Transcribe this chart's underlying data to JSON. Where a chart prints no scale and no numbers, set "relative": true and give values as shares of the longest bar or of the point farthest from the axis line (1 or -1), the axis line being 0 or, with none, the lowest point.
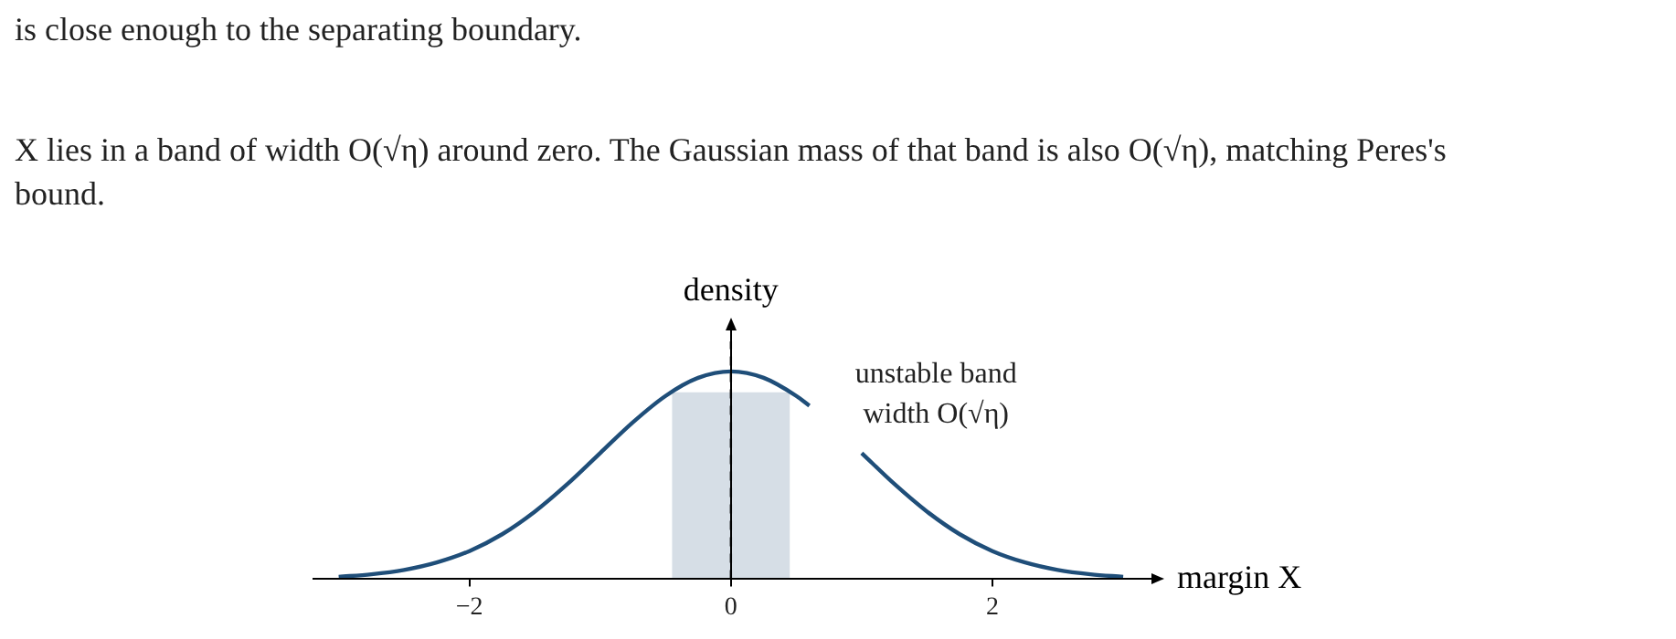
{
  "chart_data": {
    "type": "line",
    "relative": true,
    "annotations": [
      "is close enough to the separating boundary.",
      "X lies in a band of width O(√η) around zero. The Gaussian mass of that band is also O(√η), matching Peres's bound."
    ],
    "xlabel": "margin X",
    "ylabel": "density",
    "xlim": [
      -3.2,
      3.3
    ],
    "xticks": [
      {
        "value": -2,
        "label": "−2"
      },
      0,
      2
    ],
    "series": [
      {
        "color": "#1f4e79",
        "x": [
          -3,
          -2.75,
          -2.5,
          -2.25,
          -2,
          -1.75,
          -1.5,
          -1.25,
          -1,
          -0.75,
          -0.5,
          -0.25,
          0,
          0.25,
          0.5,
          0.6,
          0.75,
          1,
          1.25,
          1.5,
          1.75,
          2,
          2.25,
          2.5,
          2.75,
          3
        ],
        "values": [
          0.011,
          0.023,
          0.044,
          0.08,
          0.135,
          0.216,
          0.325,
          0.458,
          0.607,
          0.755,
          0.882,
          0.969,
          1,
          0.969,
          0.882,
          0.835,
          null,
          0.607,
          0.458,
          0.325,
          0.216,
          0.135,
          0.08,
          0.044,
          0.023,
          0.011
        ]
      }
    ],
    "bands": [
      {
        "axis": "x",
        "from": -0.45,
        "to": 0.45,
        "label": "unstable band\nwidth O(√η)",
        "color": "#d6dee6"
      }
    ],
    "ref_lines": [
      {
        "axis": "x",
        "value": 0,
        "line_style": "dashed",
        "color": "#000000"
      }
    ],
    "marker": "none",
    "line_style": "solid",
    "grid": false,
    "legend": false
  }
}
